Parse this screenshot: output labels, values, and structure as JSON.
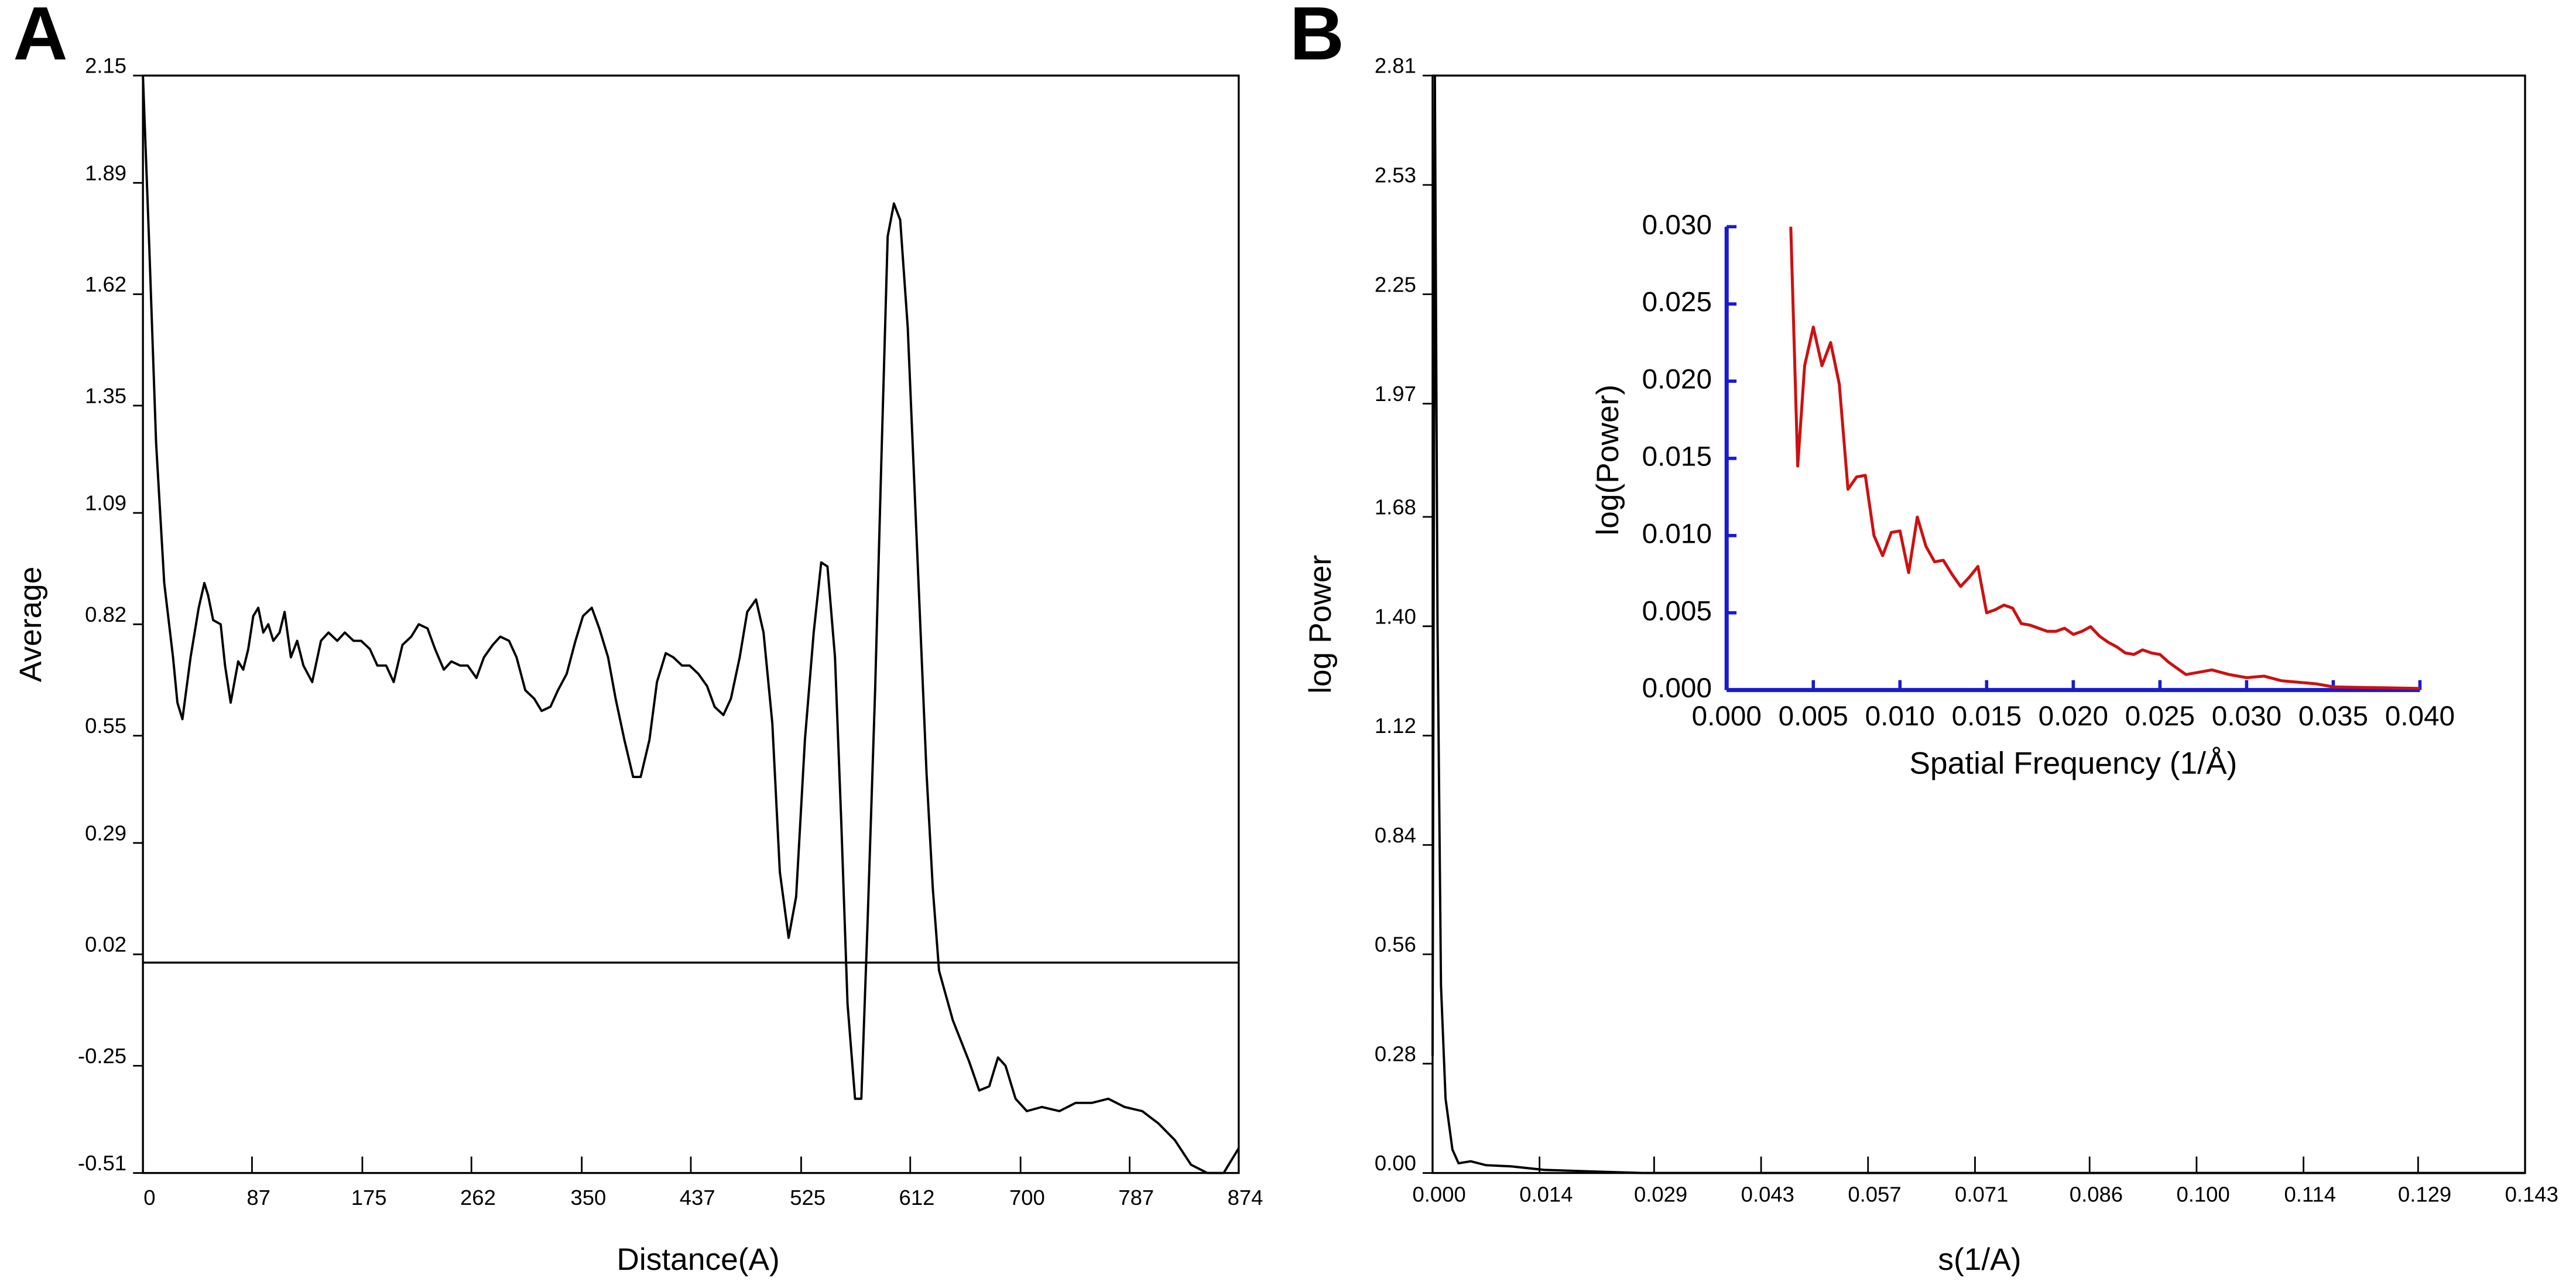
{
  "chart_data": [
    {
      "type": "line",
      "panel": "A",
      "xlabel": "Distance(A)",
      "ylabel": "Average",
      "color": "#000000",
      "hline": 0,
      "xlim": [
        0,
        874
      ],
      "xticks": [
        0,
        87,
        175,
        262,
        350,
        437,
        525,
        612,
        700,
        787,
        874
      ],
      "ylim": [
        -0.51,
        2.15
      ],
      "yticks": [
        -0.51,
        -0.25,
        0.02,
        0.29,
        0.55,
        0.82,
        1.09,
        1.35,
        1.62,
        1.89,
        2.15
      ],
      "x": [
        0,
        5,
        10.5,
        17,
        24,
        27.5,
        31.5,
        38,
        44.5,
        49,
        52,
        56,
        62,
        65.5,
        70,
        76,
        80,
        84,
        88,
        92,
        96,
        100,
        104,
        109,
        113,
        118,
        123,
        128,
        135,
        142,
        148,
        155,
        161,
        168,
        174,
        181,
        187,
        194,
        200,
        207,
        214,
        220,
        227,
        233,
        240,
        246,
        253,
        259,
        266,
        272,
        279,
        285,
        292,
        298,
        305,
        312,
        318,
        325,
        331,
        338,
        345,
        351,
        358,
        364,
        371,
        377,
        384,
        391,
        397,
        404,
        410,
        417,
        423,
        430,
        436,
        443,
        450,
        456,
        463,
        469,
        476,
        482,
        489,
        495,
        502,
        508,
        515,
        521,
        528,
        535,
        541,
        546,
        552,
        557,
        562,
        568,
        573,
        578,
        584,
        589,
        594,
        599,
        604,
        610,
        615,
        620,
        625,
        630,
        635,
        646,
        659,
        667,
        675,
        682,
        688,
        696,
        705,
        717,
        731,
        744,
        757,
        770,
        783,
        797,
        810,
        823,
        836,
        849,
        862,
        874
      ],
      "values": [
        2.15,
        1.74,
        1.26,
        0.92,
        0.74,
        0.63,
        0.59,
        0.74,
        0.86,
        0.92,
        0.89,
        0.83,
        0.82,
        0.72,
        0.63,
        0.73,
        0.71,
        0.76,
        0.84,
        0.86,
        0.8,
        0.82,
        0.78,
        0.8,
        0.85,
        0.74,
        0.78,
        0.72,
        0.68,
        0.78,
        0.8,
        0.78,
        0.8,
        0.78,
        0.78,
        0.76,
        0.72,
        0.72,
        0.68,
        0.77,
        0.79,
        0.82,
        0.81,
        0.76,
        0.71,
        0.73,
        0.72,
        0.72,
        0.69,
        0.74,
        0.77,
        0.79,
        0.78,
        0.74,
        0.66,
        0.64,
        0.61,
        0.62,
        0.66,
        0.7,
        0.78,
        0.84,
        0.86,
        0.81,
        0.74,
        0.64,
        0.54,
        0.45,
        0.45,
        0.54,
        0.68,
        0.75,
        0.74,
        0.72,
        0.72,
        0.7,
        0.67,
        0.62,
        0.6,
        0.64,
        0.74,
        0.85,
        0.88,
        0.8,
        0.58,
        0.22,
        0.06,
        0.16,
        0.54,
        0.8,
        0.97,
        0.96,
        0.74,
        0.34,
        -0.1,
        -0.33,
        -0.33,
        0.1,
        0.66,
        1.22,
        1.76,
        1.84,
        1.8,
        1.54,
        1.18,
        0.82,
        0.46,
        0.18,
        -0.02,
        -0.14,
        -0.24,
        -0.31,
        -0.3,
        -0.23,
        -0.25,
        -0.33,
        -0.36,
        -0.35,
        -0.36,
        -0.34,
        -0.34,
        -0.33,
        -0.35,
        -0.36,
        -0.39,
        -0.43,
        -0.49,
        -0.51,
        -0.51,
        -0.45
      ]
    },
    {
      "type": "line",
      "panel": "B",
      "xlabel": "s(1/A)",
      "ylabel": "log Power",
      "color": "#000000",
      "xlim": [
        0,
        0.143
      ],
      "xticks": [
        {
          "value": 0,
          "label": "0.000"
        },
        {
          "value": 0.014,
          "label": "0.014"
        },
        {
          "value": 0.029,
          "label": "0.029"
        },
        {
          "value": 0.043,
          "label": "0.043"
        },
        {
          "value": 0.057,
          "label": "0.057"
        },
        {
          "value": 0.071,
          "label": "0.071"
        },
        {
          "value": 0.086,
          "label": "0.086"
        },
        {
          "value": 0.1,
          "label": "0.100"
        },
        {
          "value": 0.114,
          "label": "0.114"
        },
        {
          "value": 0.129,
          "label": "0.129"
        },
        {
          "value": 0.143,
          "label": "0.143"
        }
      ],
      "ylim": [
        0,
        2.81
      ],
      "yticks": [
        {
          "value": 0,
          "label": "0.00"
        },
        {
          "value": 0.28,
          "label": "0.28"
        },
        {
          "value": 0.56,
          "label": "0.56"
        },
        0.84,
        1.12,
        {
          "value": 1.4,
          "label": "1.40"
        },
        1.68,
        1.97,
        2.25,
        2.53,
        2.81
      ],
      "x": [
        0,
        0.0003,
        0.00065,
        0.0011,
        0.0017,
        0.0026,
        0.0034,
        0.005,
        0.007,
        0.0103,
        0.0146,
        0.021,
        0.0275,
        0.143
      ],
      "values": [
        0.3,
        2.81,
        1.4,
        0.48,
        0.19,
        0.06,
        0.025,
        0.03,
        0.02,
        0.017,
        0.008,
        0.004,
        0,
        0
      ]
    },
    {
      "type": "line",
      "xlabel": "Spatial Frequency (1/Å)",
      "ylabel": "log(Power)",
      "color": "#cc1111",
      "axis_color": "#1a1acc",
      "xlim": [
        0,
        0.04
      ],
      "xticks": [
        {
          "value": 0,
          "label": "0.000"
        },
        0.005,
        {
          "value": 0.01,
          "label": "0.010"
        },
        0.015,
        {
          "value": 0.02,
          "label": "0.020"
        },
        0.025,
        {
          "value": 0.03,
          "label": "0.030"
        },
        0.035,
        {
          "value": 0.04,
          "label": "0.040"
        }
      ],
      "ylim": [
        0,
        0.03
      ],
      "yticks": [
        {
          "value": 0,
          "label": "0.000"
        },
        0.005,
        {
          "value": 0.01,
          "label": "0.010"
        },
        0.015,
        {
          "value": 0.02,
          "label": "0.020"
        },
        0.025,
        {
          "value": 0.03,
          "label": "0.030"
        }
      ],
      "x": [
        0.0037,
        0.0041,
        0.0045,
        0.005,
        0.0055,
        0.006,
        0.0065,
        0.007,
        0.0075,
        0.008,
        0.0085,
        0.009,
        0.0095,
        0.01,
        0.0105,
        0.011,
        0.0115,
        0.012,
        0.0125,
        0.013,
        0.0135,
        0.014,
        0.0145,
        0.015,
        0.0155,
        0.016,
        0.0165,
        0.017,
        0.0175,
        0.018,
        0.0185,
        0.019,
        0.0195,
        0.02,
        0.0205,
        0.021,
        0.0215,
        0.022,
        0.0225,
        0.023,
        0.0235,
        0.024,
        0.0245,
        0.025,
        0.0255,
        0.026,
        0.0265,
        0.027,
        0.028,
        0.029,
        0.03,
        0.031,
        0.032,
        0.033,
        0.034,
        0.035,
        0.04
      ],
      "values": [
        0.03,
        0.0145,
        0.021,
        0.0235,
        0.021,
        0.0225,
        0.0198,
        0.013,
        0.0138,
        0.0139,
        0.01,
        0.0087,
        0.0102,
        0.0103,
        0.0076,
        0.0112,
        0.0093,
        0.0083,
        0.0084,
        0.0075,
        0.0067,
        0.0073,
        0.008,
        0.005,
        0.0052,
        0.0055,
        0.0053,
        0.0043,
        0.0042,
        0.004,
        0.0038,
        0.0038,
        0.004,
        0.0036,
        0.0038,
        0.0041,
        0.0035,
        0.0031,
        0.0028,
        0.0024,
        0.0023,
        0.0026,
        0.0024,
        0.0023,
        0.0018,
        0.0014,
        0.001,
        0.0011,
        0.0013,
        0.001,
        0.0008,
        0.0009,
        0.0006,
        0.0005,
        0.0004,
        0.0002,
        0.0001
      ]
    }
  ]
}
